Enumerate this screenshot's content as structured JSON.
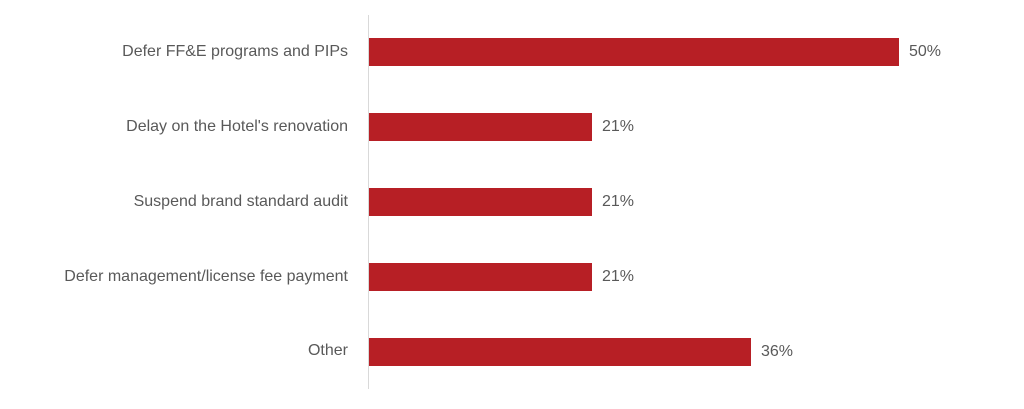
{
  "chart_data": {
    "type": "bar",
    "orientation": "horizontal",
    "title": "",
    "xlabel": "",
    "ylabel": "",
    "categories": [
      "Defer FF&E programs and PIPs",
      "Delay on the Hotel's renovation",
      "Suspend brand standard audit",
      "Defer management/license fee payment",
      "Other"
    ],
    "values": [
      50,
      21,
      21,
      21,
      36
    ],
    "value_labels": [
      "50%",
      "21%",
      "21%",
      "21%",
      "36%"
    ],
    "xlim": [
      0,
      57
    ],
    "grid": false,
    "legend": false,
    "bar_color": "#b71f25",
    "axis_line_color": "#d9d9d9",
    "label_color": "#595959",
    "value_label_color": "#595959"
  }
}
